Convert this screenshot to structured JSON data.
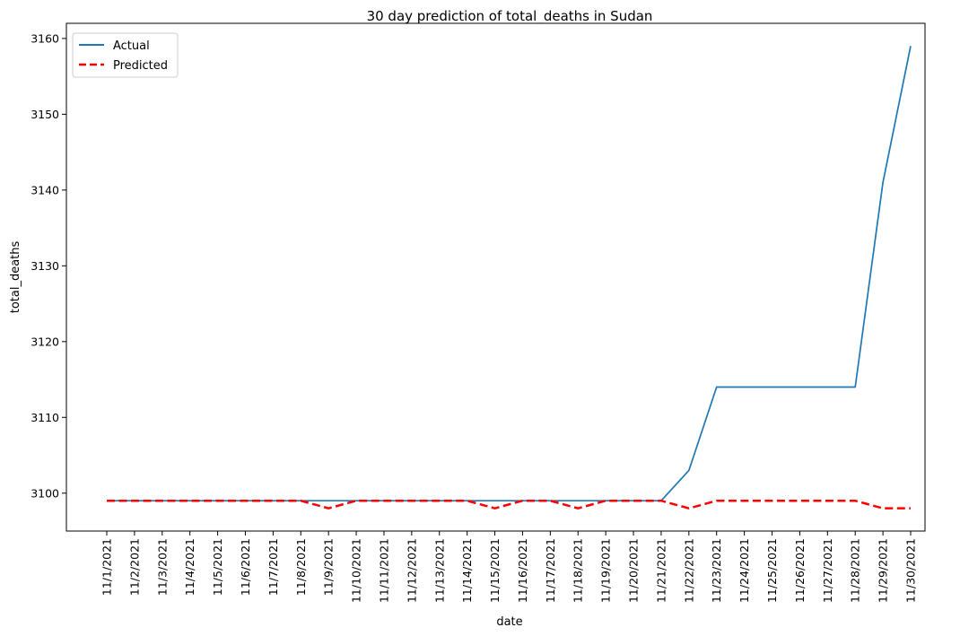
{
  "chart_data": {
    "type": "line",
    "title": "30 day prediction of total_deaths in Sudan",
    "xlabel": "date",
    "ylabel": "total_deaths",
    "x": [
      "11/1/2021",
      "11/2/2021",
      "11/3/2021",
      "11/4/2021",
      "11/5/2021",
      "11/6/2021",
      "11/7/2021",
      "11/8/2021",
      "11/9/2021",
      "11/10/2021",
      "11/11/2021",
      "11/12/2021",
      "11/13/2021",
      "11/14/2021",
      "11/15/2021",
      "11/16/2021",
      "11/17/2021",
      "11/18/2021",
      "11/19/2021",
      "11/20/2021",
      "11/21/2021",
      "11/22/2021",
      "11/23/2021",
      "11/24/2021",
      "11/25/2021",
      "11/26/2021",
      "11/27/2021",
      "11/28/2021",
      "11/29/2021",
      "11/30/2021"
    ],
    "ylim": [
      3095,
      3162
    ],
    "yticks": [
      3100,
      3110,
      3120,
      3130,
      3140,
      3150,
      3160
    ],
    "grid": false,
    "legend_position": "top-left",
    "series": [
      {
        "name": "Actual",
        "color": "#1f77b4",
        "style": "solid",
        "values": [
          3099,
          3099,
          3099,
          3099,
          3099,
          3099,
          3099,
          3099,
          3099,
          3099,
          3099,
          3099,
          3099,
          3099,
          3099,
          3099,
          3099,
          3099,
          3099,
          3099,
          3099,
          3103,
          3114,
          3114,
          3114,
          3114,
          3114,
          3114,
          3141,
          3159
        ]
      },
      {
        "name": "Predicted",
        "color": "#ff0000",
        "style": "dashed",
        "values": [
          3099,
          3099,
          3099,
          3099,
          3099,
          3099,
          3099,
          3099,
          3098,
          3099,
          3099,
          3099,
          3099,
          3099,
          3098,
          3099,
          3099,
          3098,
          3099,
          3099,
          3099,
          3098,
          3099,
          3099,
          3099,
          3099,
          3099,
          3099,
          3098,
          3098
        ]
      }
    ]
  }
}
